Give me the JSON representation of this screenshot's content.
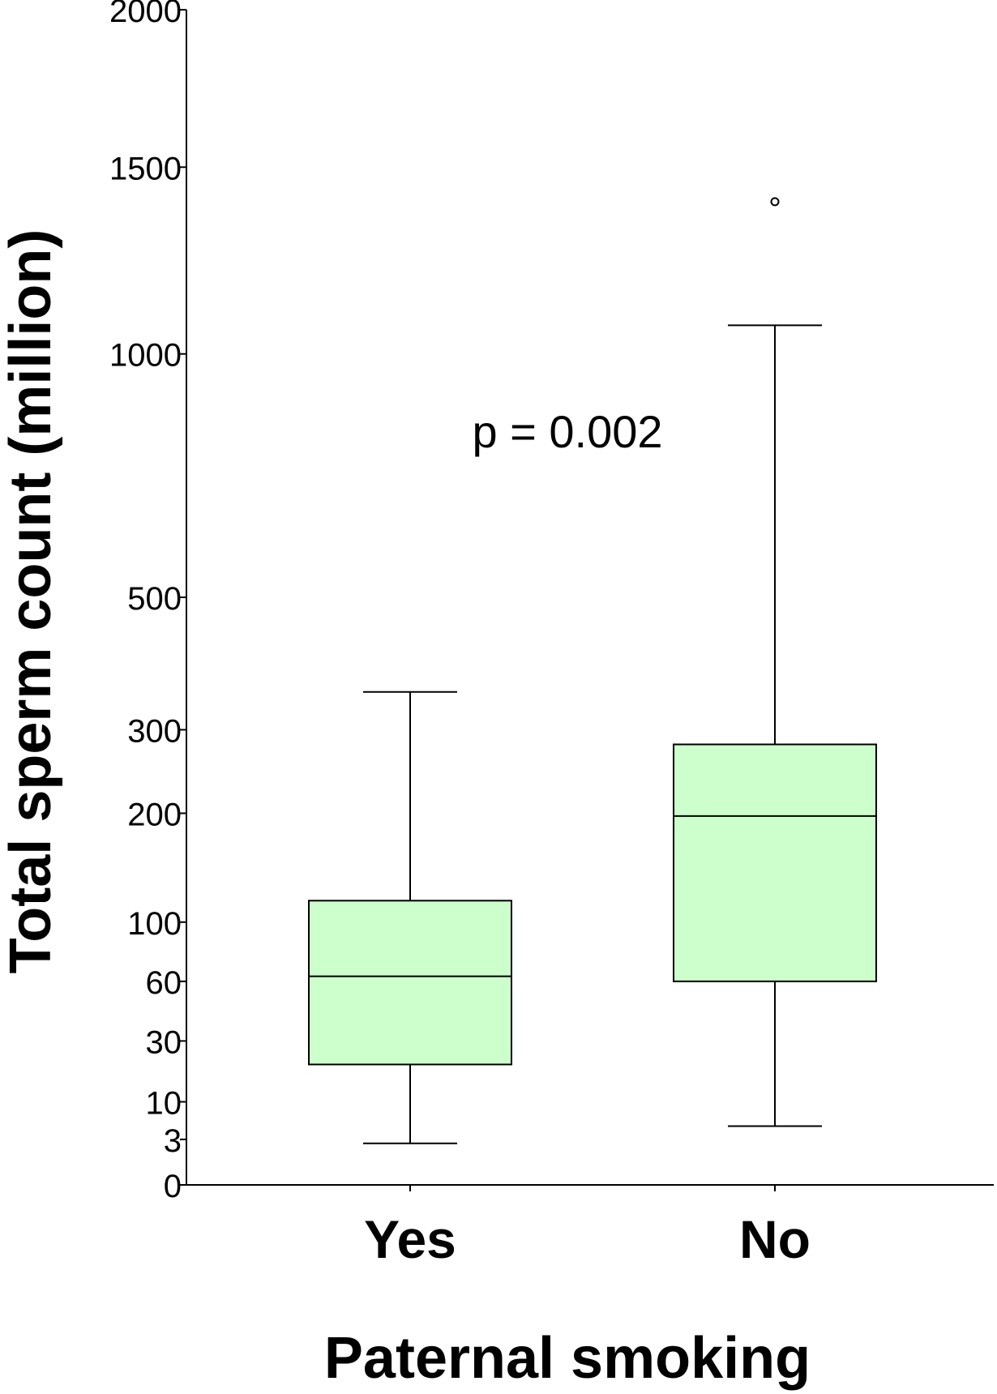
{
  "chart_data": {
    "type": "boxplot",
    "xlabel": "Paternal smoking",
    "ylabel": "Total sperm count (million)",
    "y_ticks": [
      0,
      3,
      10,
      30,
      60,
      100,
      200,
      300,
      500,
      1000,
      1500,
      2000
    ],
    "ylim": [
      0,
      2000
    ],
    "y_scale": "square-root",
    "annotation": "p = 0.002",
    "box_color": "#ccffcc",
    "grid": false,
    "categories": [
      "Yes",
      "No"
    ],
    "boxes": [
      {
        "category": "Yes",
        "whisker_low": 2.5,
        "q1": 21,
        "median": 63,
        "q3": 117,
        "whisker_high": 352,
        "outliers": []
      },
      {
        "category": "No",
        "whisker_low": 5,
        "q1": 60,
        "median": 197,
        "q3": 281,
        "whisker_high": 1070,
        "outliers": [
          1400
        ]
      }
    ]
  }
}
